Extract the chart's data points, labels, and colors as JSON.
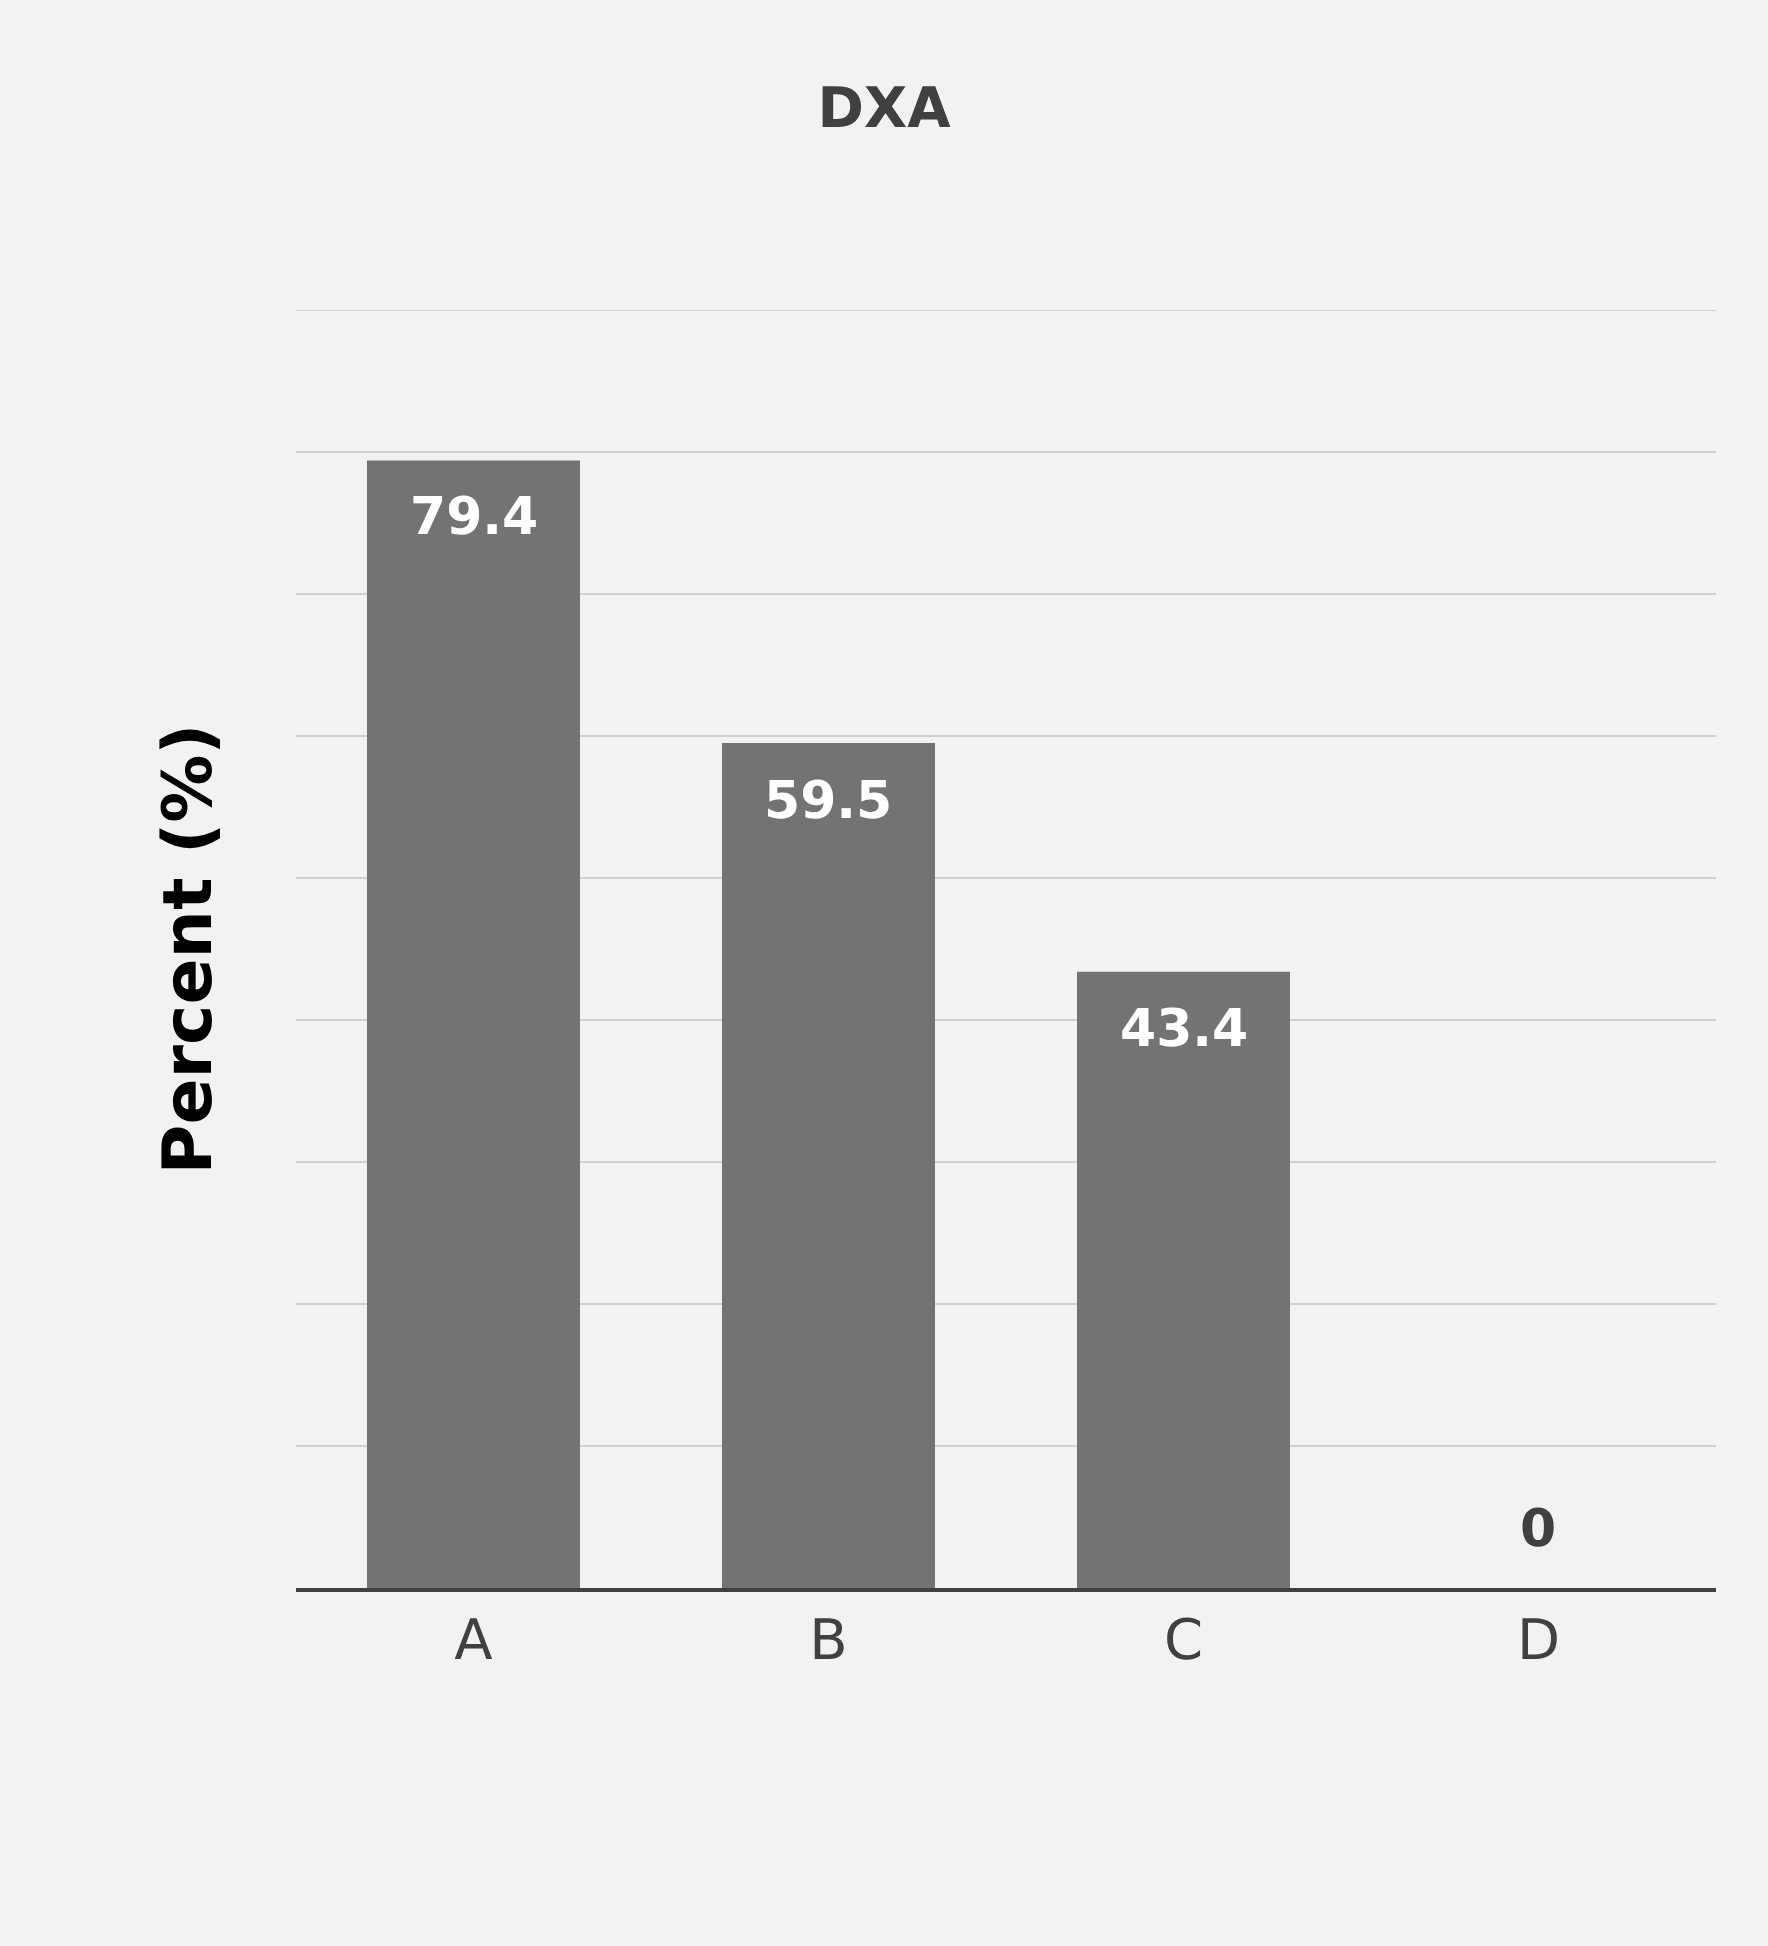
{
  "chart_data": {
    "type": "bar",
    "title": "DXA",
    "ylabel": "Percent (%)",
    "categories": [
      "A",
      "B",
      "C",
      "D"
    ],
    "values": [
      79.4,
      59.5,
      43.4,
      0
    ],
    "color": "#737373",
    "ylim": [
      0,
      90
    ],
    "tick_labels": "x",
    "grid": "y",
    "legend": false,
    "data_labels": true
  }
}
